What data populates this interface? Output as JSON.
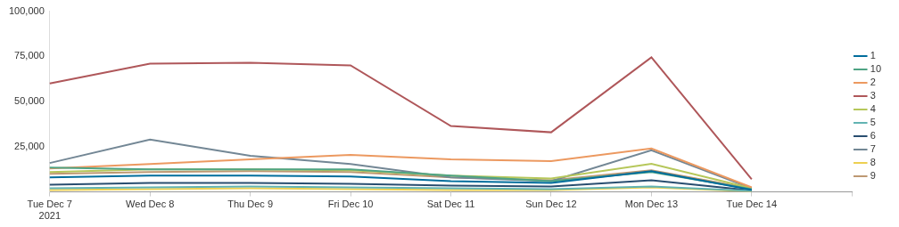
{
  "chart_data": {
    "type": "line",
    "categories": [
      "Tue Dec 7\n2021",
      "Wed Dec 8",
      "Thu Dec 9",
      "Fri Dec 10",
      "Sat Dec 11",
      "Sun Dec 12",
      "Mon Dec 13",
      "Tue Dec 14",
      null
    ],
    "ylim": [
      0,
      100000
    ],
    "yticks": [
      {
        "value": 25000,
        "label": "25,000"
      },
      {
        "value": 50000,
        "label": "50,000"
      },
      {
        "value": 75000,
        "label": "75,000"
      },
      {
        "value": 100000,
        "label": "100,000"
      }
    ],
    "grid": false,
    "legend": "right",
    "series": [
      {
        "name": "1",
        "color": "#006d9c",
        "values": [
          8000,
          9000,
          9000,
          8500,
          6000,
          5000,
          11500,
          1200,
          null
        ]
      },
      {
        "name": "10",
        "color": "#4fa484",
        "values": [
          13500,
          12500,
          12500,
          12500,
          9000,
          6000,
          11000,
          1500,
          null
        ]
      },
      {
        "name": "2",
        "color": "#ec9960",
        "values": [
          13000,
          15500,
          18000,
          20500,
          18000,
          17000,
          24000,
          2500,
          null
        ]
      },
      {
        "name": "3",
        "color": "#af575a",
        "values": [
          60000,
          71000,
          71500,
          70000,
          36500,
          33000,
          74500,
          7000,
          null
        ]
      },
      {
        "name": "4",
        "color": "#b6c75a",
        "values": [
          11000,
          12500,
          12500,
          12000,
          9000,
          7500,
          15500,
          2000,
          null
        ]
      },
      {
        "name": "5",
        "color": "#62b3b2",
        "values": [
          2000,
          2500,
          3000,
          2500,
          2000,
          1500,
          3000,
          500,
          null
        ]
      },
      {
        "name": "6",
        "color": "#294e70",
        "values": [
          4000,
          5000,
          5000,
          4500,
          3500,
          3000,
          6500,
          800,
          null
        ]
      },
      {
        "name": "7",
        "color": "#738795",
        "values": [
          16000,
          29000,
          20000,
          15500,
          8000,
          6000,
          23000,
          2000,
          null
        ]
      },
      {
        "name": "8",
        "color": "#edd051",
        "values": [
          1000,
          1500,
          2000,
          1500,
          1000,
          1000,
          2500,
          300,
          null
        ]
      },
      {
        "name": "9",
        "color": "#bd9872",
        "values": [
          10000,
          11000,
          11500,
          11000,
          8000,
          6500,
          12000,
          1800,
          null
        ]
      }
    ]
  }
}
